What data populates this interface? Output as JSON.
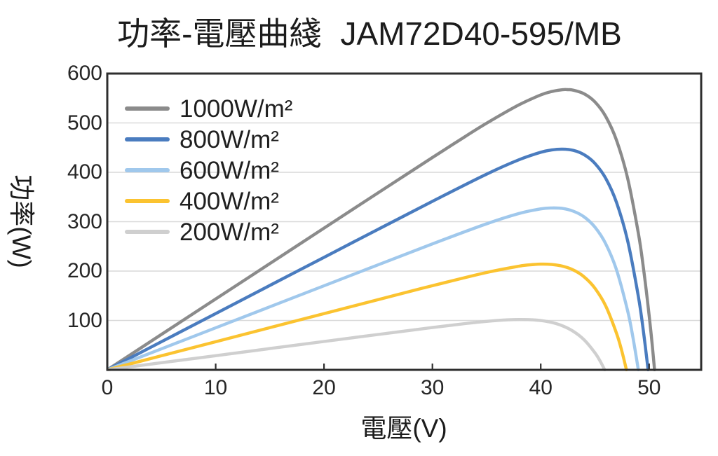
{
  "chart_data": {
    "type": "line",
    "title": "功率-電壓曲綫  JAM72D40-595/MB",
    "title_left": "功率-電壓曲綫",
    "title_right": "JAM72D40-595/MB",
    "xlabel": "電壓(V)",
    "ylabel": "功率(W)",
    "xlim": [
      0,
      54.8
    ],
    "ylim": [
      0,
      600
    ],
    "xticks": [
      0,
      10,
      20,
      30,
      40,
      50
    ],
    "yticks": [
      100,
      200,
      300,
      400,
      500,
      600
    ],
    "grid": "horizontal-only",
    "legend_position": "top-left-inside",
    "colors": {
      "background": "#ffffff",
      "frame": "#2e2e2e",
      "grid": "#d9d9d9",
      "text": "#1f1f1f"
    },
    "series": [
      {
        "id": "1000wm2",
        "label": "1000W/m²",
        "color": "#8b8b8b",
        "peak": {
          "v": 42.5,
          "p": 567
        },
        "voc": 50.5,
        "points": [
          [
            0,
            0
          ],
          [
            5,
            71.8
          ],
          [
            10,
            143.5
          ],
          [
            15,
            215.2
          ],
          [
            20,
            287.0
          ],
          [
            25,
            358.6
          ],
          [
            30,
            430.0
          ],
          [
            32.5,
            465.1
          ],
          [
            35,
            499.4
          ],
          [
            38,
            536.8
          ],
          [
            40,
            556.7
          ],
          [
            41,
            563.5
          ],
          [
            42,
            567.2
          ],
          [
            42.5,
            567.4
          ],
          [
            43,
            566.4
          ],
          [
            44,
            559.0
          ],
          [
            45,
            542.5
          ],
          [
            46,
            512.8
          ],
          [
            47,
            464.4
          ],
          [
            48,
            389.4
          ],
          [
            49,
            276.7
          ],
          [
            49.5,
            201.3
          ],
          [
            50,
            110.1
          ],
          [
            50.25,
            57.7
          ],
          [
            50.5,
            0
          ]
        ]
      },
      {
        "id": "800wm2",
        "label": "800W/m²",
        "color": "#4a7cbf",
        "peak": {
          "v": 42,
          "p": 447
        },
        "voc": 49.9,
        "points": [
          [
            0,
            0
          ],
          [
            5,
            57.0
          ],
          [
            10,
            113.9
          ],
          [
            15,
            170.9
          ],
          [
            20,
            227.8
          ],
          [
            25,
            284.7
          ],
          [
            30,
            341.3
          ],
          [
            35,
            396.3
          ],
          [
            38,
            425.6
          ],
          [
            40,
            440.6
          ],
          [
            41,
            445.3
          ],
          [
            42,
            447.0
          ],
          [
            43,
            444.5
          ],
          [
            44,
            435.6
          ],
          [
            45,
            418.0
          ],
          [
            46,
            387.5
          ],
          [
            47,
            338.4
          ],
          [
            48,
            262.7
          ],
          [
            49,
            148.8
          ],
          [
            49.5,
            72.7
          ],
          [
            49.9,
            0
          ]
        ]
      },
      {
        "id": "600wm2",
        "label": "600W/m²",
        "color": "#a0c8ec",
        "peak": {
          "v": 41,
          "p": 328
        },
        "voc": 49.0,
        "points": [
          [
            0,
            0
          ],
          [
            5,
            42.6
          ],
          [
            10,
            85.1
          ],
          [
            15,
            127.7
          ],
          [
            20,
            170.2
          ],
          [
            25,
            212.8
          ],
          [
            30,
            255.0
          ],
          [
            35,
            295.7
          ],
          [
            38,
            316.6
          ],
          [
            40,
            325.9
          ],
          [
            41,
            327.8
          ],
          [
            42,
            326.8
          ],
          [
            43,
            321.3
          ],
          [
            44,
            309.6
          ],
          [
            45,
            288.9
          ],
          [
            46,
            254.9
          ],
          [
            47,
            201.8
          ],
          [
            48,
            120.9
          ],
          [
            48.5,
            66.4
          ],
          [
            49,
            0
          ]
        ]
      },
      {
        "id": "400wm2",
        "label": "400W/m²",
        "color": "#fbc330",
        "peak": {
          "v": 40,
          "p": 214
        },
        "voc": 47.9,
        "points": [
          [
            0,
            0
          ],
          [
            5,
            28.5
          ],
          [
            10,
            56.9
          ],
          [
            15,
            85.4
          ],
          [
            20,
            113.8
          ],
          [
            25,
            142.3
          ],
          [
            30,
            170.4
          ],
          [
            35,
            197.2
          ],
          [
            38,
            209.9
          ],
          [
            39,
            212.6
          ],
          [
            40,
            214.1
          ],
          [
            41,
            213.4
          ],
          [
            42,
            209.9
          ],
          [
            43,
            202.2
          ],
          [
            44,
            188.2
          ],
          [
            45,
            165.2
          ],
          [
            46,
            128.9
          ],
          [
            47,
            73.5
          ],
          [
            47.5,
            36.0
          ],
          [
            47.9,
            0
          ]
        ]
      },
      {
        "id": "200wm2",
        "label": "200W/m²",
        "color": "#cfcfcf",
        "peak": {
          "v": 38,
          "p": 102
        },
        "voc": 45.9,
        "points": [
          [
            0,
            0
          ],
          [
            5,
            14.4
          ],
          [
            10,
            28.7
          ],
          [
            15,
            43.1
          ],
          [
            20,
            57.4
          ],
          [
            25,
            71.7
          ],
          [
            30,
            85.7
          ],
          [
            33,
            93.6
          ],
          [
            35,
            98.1
          ],
          [
            37,
            101.3
          ],
          [
            38,
            101.9
          ],
          [
            39,
            101.5
          ],
          [
            40,
            99.8
          ],
          [
            41,
            96.0
          ],
          [
            42,
            89.1
          ],
          [
            43,
            78.0
          ],
          [
            44,
            60.7
          ],
          [
            45,
            34.5
          ],
          [
            45.5,
            16.8
          ],
          [
            45.9,
            0
          ]
        ]
      }
    ]
  }
}
